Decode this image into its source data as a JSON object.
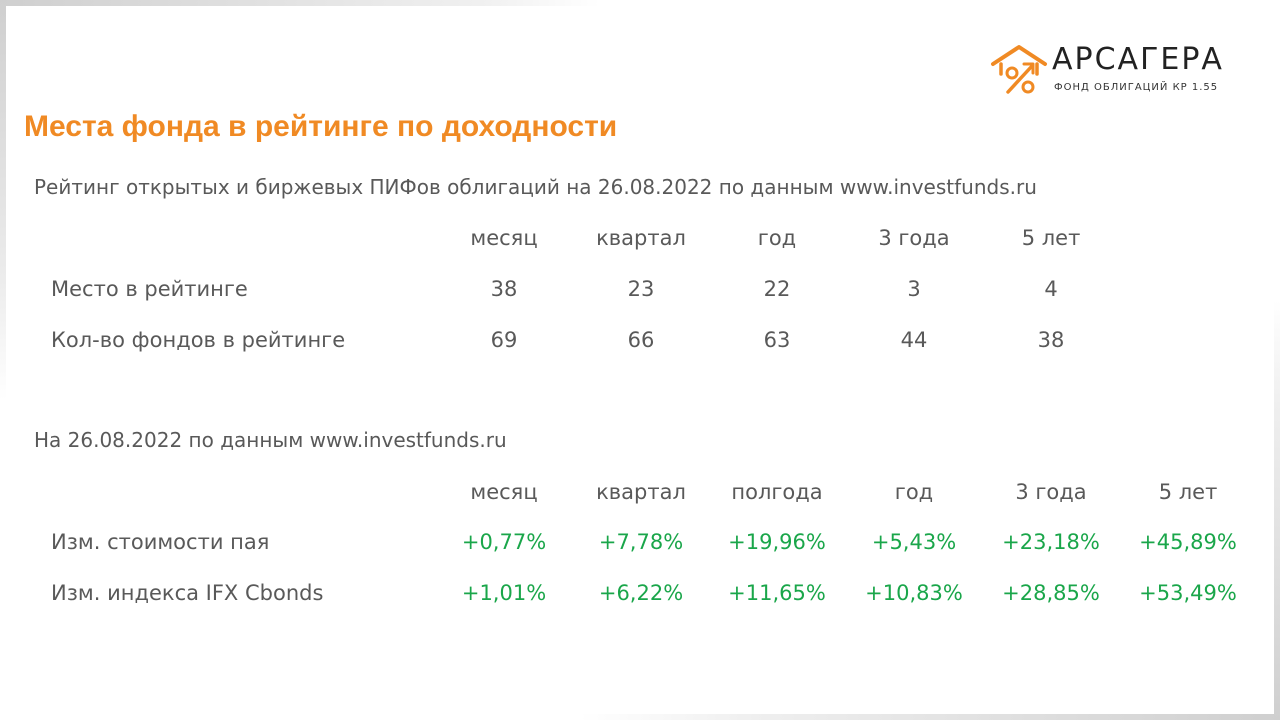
{
  "logo": {
    "name": "АРСАГЕРА",
    "subtitle": "ФОНД ОБЛИГАЦИЙ КР 1.55",
    "accent_color": "#f08a24"
  },
  "title": "Места фонда в рейтинге по доходности",
  "rating": {
    "caption": "Рейтинг открытых и биржевых ПИФов облигаций на 26.08.2022 по данным www.investfunds.ru",
    "headers": [
      "месяц",
      "квартал",
      "год",
      "3 года",
      "5 лет"
    ],
    "rows": [
      {
        "label": "Место в рейтинге",
        "values": [
          "38",
          "23",
          "22",
          "3",
          "4"
        ]
      },
      {
        "label": "Кол-во фондов в рейтинге",
        "values": [
          "69",
          "66",
          "63",
          "44",
          "38"
        ]
      }
    ]
  },
  "returns": {
    "caption": "На 26.08.2022 по данным www.investfunds.ru",
    "headers": [
      "месяц",
      "квартал",
      "полгода",
      "год",
      "3 года",
      "5 лет"
    ],
    "rows": [
      {
        "label": "Изм. стоимости пая",
        "values": [
          "+0,77%",
          "+7,78%",
          "+19,96%",
          "+5,43%",
          "+23,18%",
          "+45,89%"
        ]
      },
      {
        "label": "Изм. индекса IFX Cbonds",
        "values": [
          "+1,01%",
          "+6,22%",
          "+11,65%",
          "+10,83%",
          "+28,85%",
          "+53,49%"
        ]
      }
    ]
  },
  "colors": {
    "title": "#f08a24",
    "text": "#595959",
    "positive": "#1aa64a"
  }
}
